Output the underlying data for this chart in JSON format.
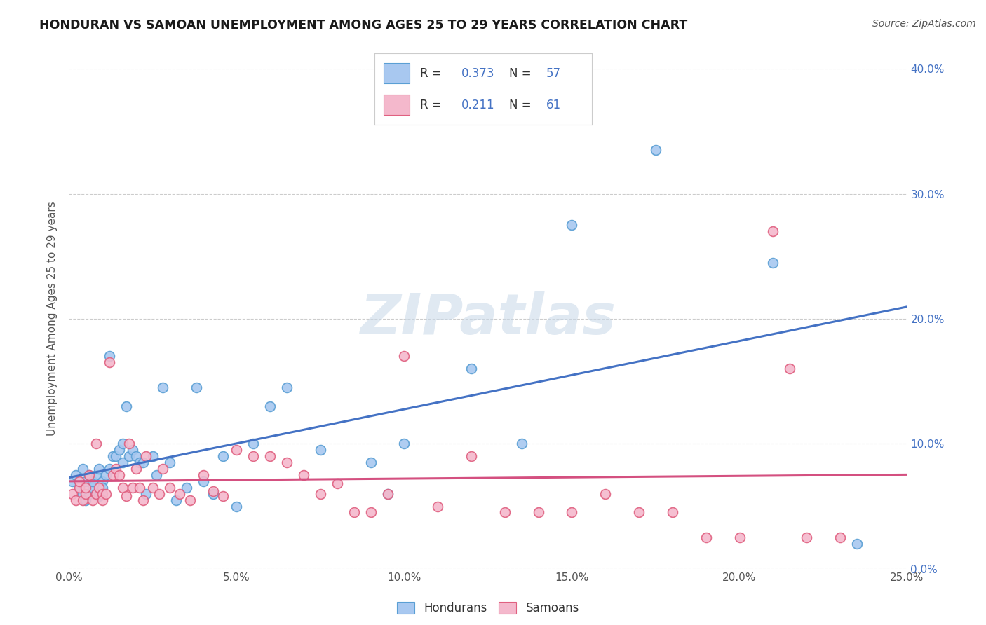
{
  "title": "HONDURAN VS SAMOAN UNEMPLOYMENT AMONG AGES 25 TO 29 YEARS CORRELATION CHART",
  "source": "Source: ZipAtlas.com",
  "ylabel": "Unemployment Among Ages 25 to 29 years",
  "xlim": [
    0.0,
    0.25
  ],
  "ylim": [
    -0.02,
    0.42
  ],
  "plot_ylim": [
    0.0,
    0.4
  ],
  "honduran_color": "#a8c8f0",
  "samoan_color": "#f4b8cc",
  "honduran_edge_color": "#5a9fd4",
  "samoan_edge_color": "#e06080",
  "honduran_line_color": "#4472c4",
  "samoan_line_color": "#d45080",
  "R_honduran": "0.373",
  "N_honduran": "57",
  "R_samoan": "0.211",
  "N_samoan": "61",
  "watermark": "ZIPatlas",
  "background_color": "#ffffff",
  "grid_color": "#cccccc",
  "honduran_x": [
    0.001,
    0.002,
    0.003,
    0.003,
    0.004,
    0.004,
    0.005,
    0.005,
    0.006,
    0.006,
    0.007,
    0.007,
    0.008,
    0.008,
    0.009,
    0.009,
    0.01,
    0.01,
    0.011,
    0.012,
    0.012,
    0.013,
    0.014,
    0.015,
    0.016,
    0.016,
    0.017,
    0.018,
    0.019,
    0.02,
    0.021,
    0.022,
    0.023,
    0.025,
    0.026,
    0.028,
    0.03,
    0.032,
    0.035,
    0.038,
    0.04,
    0.043,
    0.046,
    0.05,
    0.055,
    0.06,
    0.065,
    0.075,
    0.09,
    0.095,
    0.1,
    0.12,
    0.135,
    0.15,
    0.175,
    0.21,
    0.235
  ],
  "honduran_y": [
    0.07,
    0.075,
    0.065,
    0.07,
    0.08,
    0.06,
    0.055,
    0.07,
    0.06,
    0.075,
    0.065,
    0.07,
    0.075,
    0.06,
    0.08,
    0.058,
    0.07,
    0.065,
    0.075,
    0.08,
    0.17,
    0.09,
    0.09,
    0.095,
    0.1,
    0.085,
    0.13,
    0.09,
    0.095,
    0.09,
    0.085,
    0.085,
    0.06,
    0.09,
    0.075,
    0.145,
    0.085,
    0.055,
    0.065,
    0.145,
    0.07,
    0.06,
    0.09,
    0.05,
    0.1,
    0.13,
    0.145,
    0.095,
    0.085,
    0.06,
    0.1,
    0.16,
    0.1,
    0.275,
    0.335,
    0.245,
    0.02
  ],
  "samoan_x": [
    0.001,
    0.002,
    0.003,
    0.003,
    0.004,
    0.005,
    0.005,
    0.006,
    0.007,
    0.008,
    0.008,
    0.009,
    0.01,
    0.01,
    0.011,
    0.012,
    0.013,
    0.014,
    0.015,
    0.016,
    0.017,
    0.018,
    0.019,
    0.02,
    0.021,
    0.022,
    0.023,
    0.025,
    0.027,
    0.028,
    0.03,
    0.033,
    0.036,
    0.04,
    0.043,
    0.046,
    0.05,
    0.055,
    0.06,
    0.065,
    0.07,
    0.075,
    0.08,
    0.085,
    0.09,
    0.095,
    0.1,
    0.11,
    0.12,
    0.13,
    0.14,
    0.15,
    0.16,
    0.17,
    0.18,
    0.19,
    0.2,
    0.21,
    0.215,
    0.22,
    0.23
  ],
  "samoan_y": [
    0.06,
    0.055,
    0.065,
    0.07,
    0.055,
    0.06,
    0.065,
    0.075,
    0.055,
    0.06,
    0.1,
    0.065,
    0.06,
    0.055,
    0.06,
    0.165,
    0.075,
    0.08,
    0.075,
    0.065,
    0.058,
    0.1,
    0.065,
    0.08,
    0.065,
    0.055,
    0.09,
    0.065,
    0.06,
    0.08,
    0.065,
    0.06,
    0.055,
    0.075,
    0.062,
    0.058,
    0.095,
    0.09,
    0.09,
    0.085,
    0.075,
    0.06,
    0.068,
    0.045,
    0.045,
    0.06,
    0.17,
    0.05,
    0.09,
    0.045,
    0.045,
    0.045,
    0.06,
    0.045,
    0.045,
    0.025,
    0.025,
    0.27,
    0.16,
    0.025,
    0.025
  ]
}
